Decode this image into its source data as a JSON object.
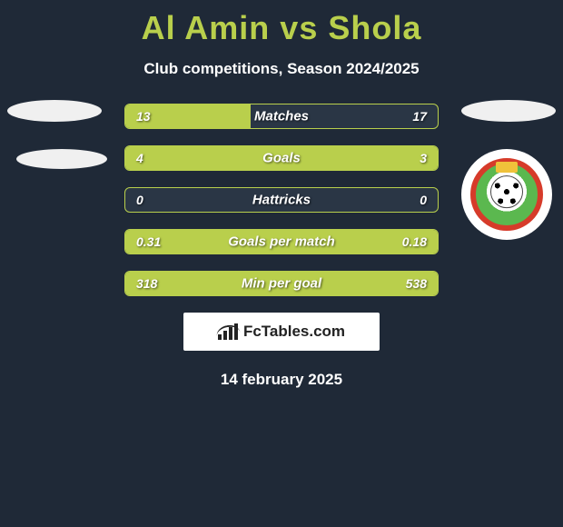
{
  "title": "Al Amin vs Shola",
  "subtitle": "Club competitions, Season 2024/2025",
  "accent_color": "#b9cf4c",
  "background_color": "#1f2937",
  "bar_bg_color": "#2a3645",
  "text_color": "#ffffff",
  "bars": [
    {
      "label": "Matches",
      "left": "13",
      "right": "17",
      "left_pct": 40,
      "right_pct": 0
    },
    {
      "label": "Goals",
      "left": "4",
      "right": "3",
      "left_pct": 100,
      "right_pct": 0
    },
    {
      "label": "Hattricks",
      "left": "0",
      "right": "0",
      "left_pct": 0,
      "right_pct": 0
    },
    {
      "label": "Goals per match",
      "left": "0.31",
      "right": "0.18",
      "left_pct": 100,
      "right_pct": 0
    },
    {
      "label": "Min per goal",
      "left": "318",
      "right": "538",
      "left_pct": 100,
      "right_pct": 0
    }
  ],
  "brand": "FcTables.com",
  "date": "14 february 2025",
  "crest_colors": {
    "outer": "#d63b2a",
    "field": "#5bb84f",
    "top": "#f0c23a"
  }
}
